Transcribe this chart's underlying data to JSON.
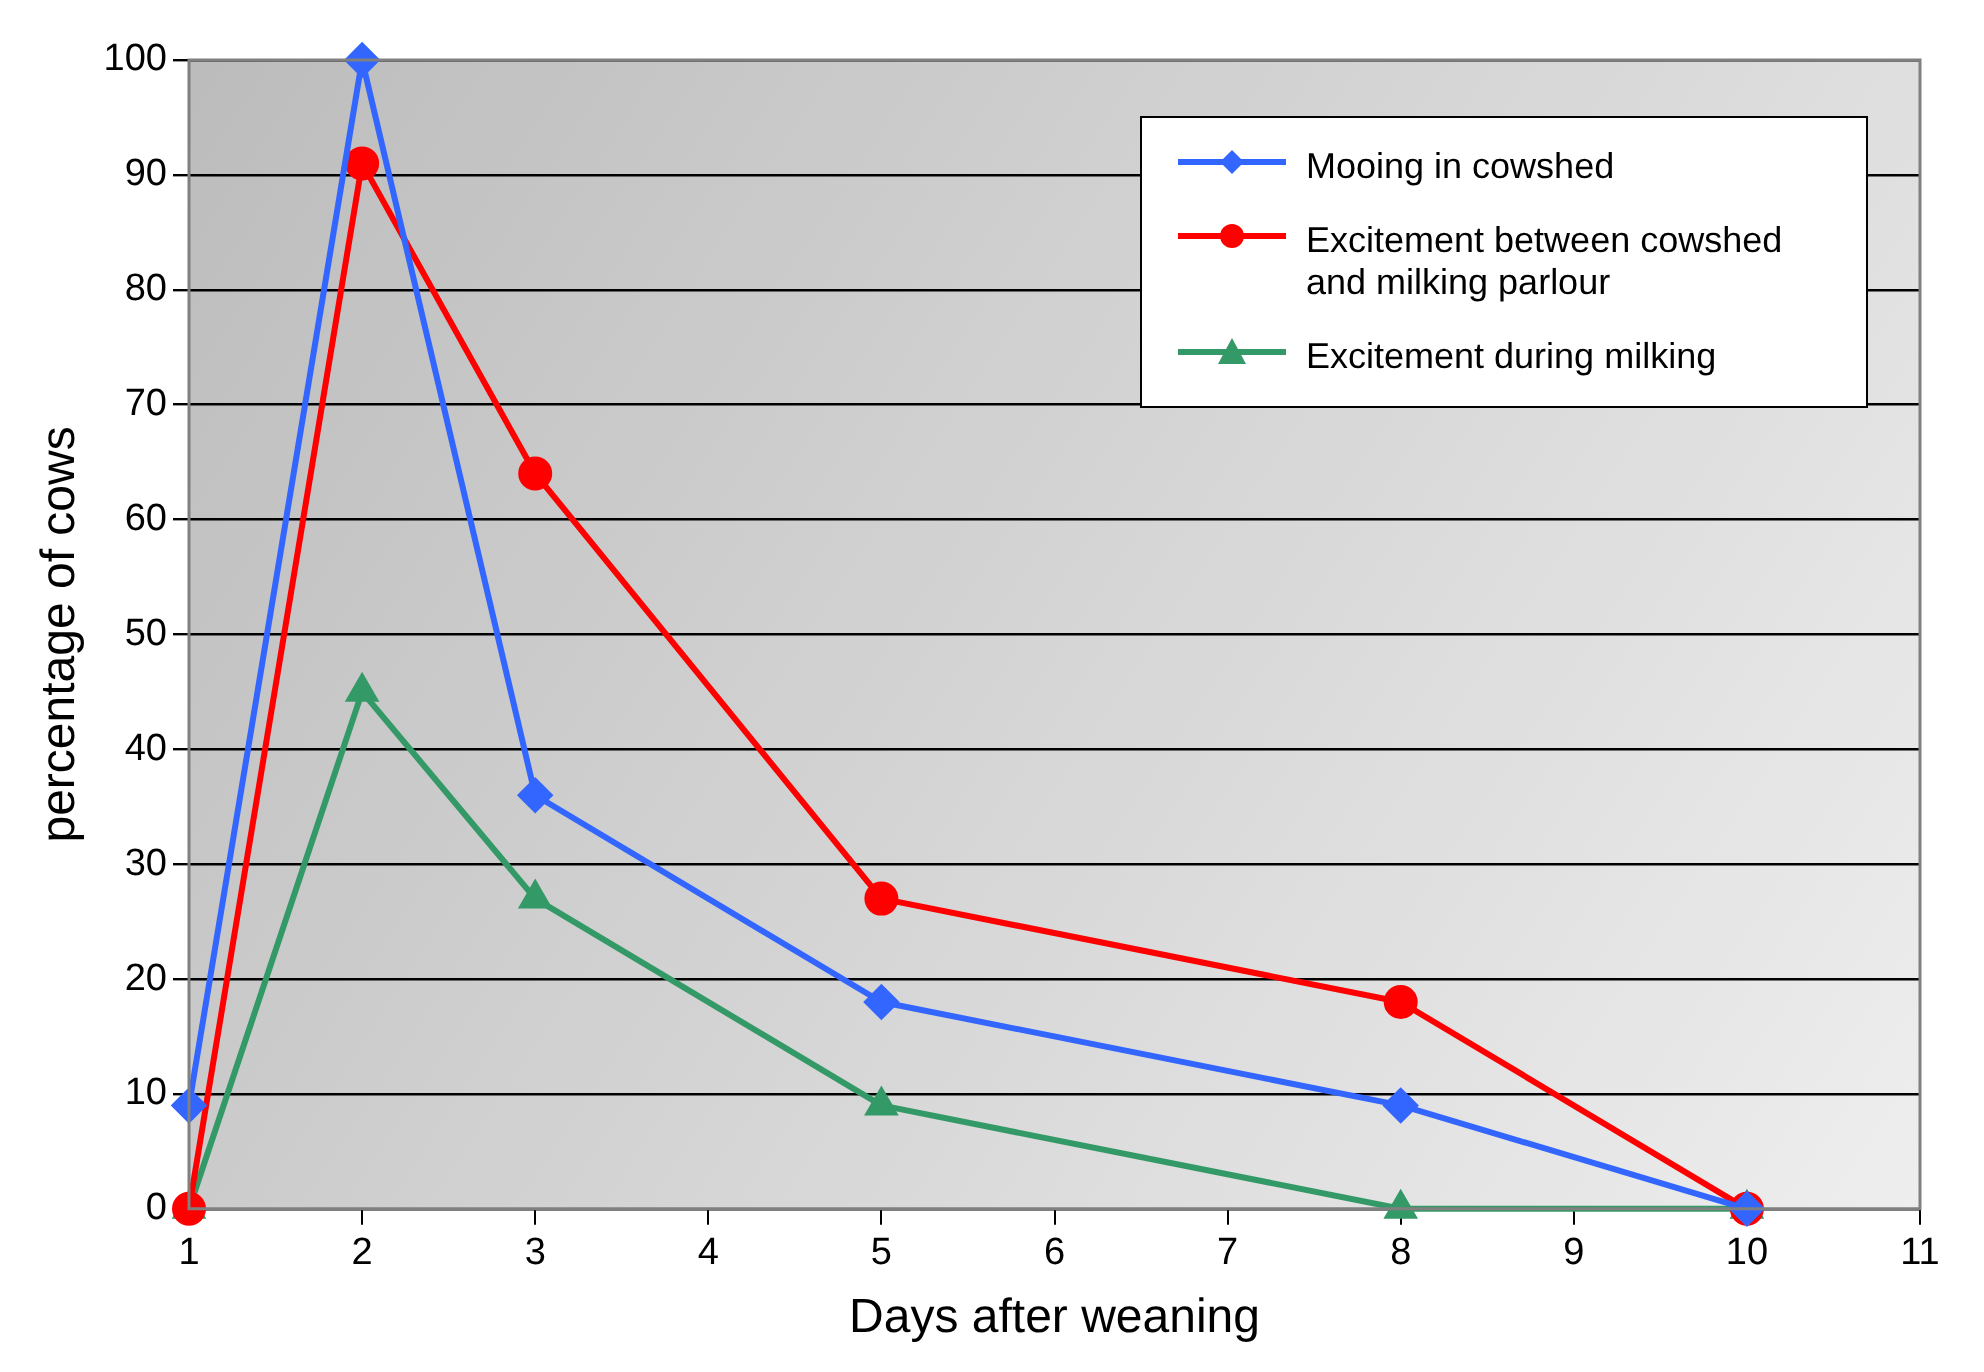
{
  "chart_data": {
    "type": "line",
    "xlabel": "Days after weaning",
    "ylabel": "percentage of cows",
    "x": [
      1,
      2,
      3,
      5,
      8,
      10
    ],
    "series": [
      {
        "name": "Mooing in cowshed",
        "color": "#3366ff",
        "marker": "diamond",
        "values": [
          9,
          100,
          36,
          18,
          9,
          0
        ]
      },
      {
        "name": "Excitement between cowshed and milking parlour",
        "color": "#ff0000",
        "marker": "circle",
        "values": [
          0,
          91,
          64,
          27,
          18,
          0
        ]
      },
      {
        "name": "Excitement during milking",
        "color": "#339966",
        "marker": "triangle",
        "values": [
          0,
          45,
          27,
          9,
          0,
          0
        ]
      }
    ],
    "xlim": [
      1,
      11
    ],
    "xticks": [
      1,
      2,
      3,
      4,
      5,
      6,
      7,
      8,
      9,
      10,
      11
    ],
    "ylim": [
      0,
      100
    ],
    "yticks": [
      0,
      10,
      20,
      30,
      40,
      50,
      60,
      70,
      80,
      90,
      100
    ],
    "grid": "y",
    "legend": "top right",
    "line_style": "solid"
  }
}
